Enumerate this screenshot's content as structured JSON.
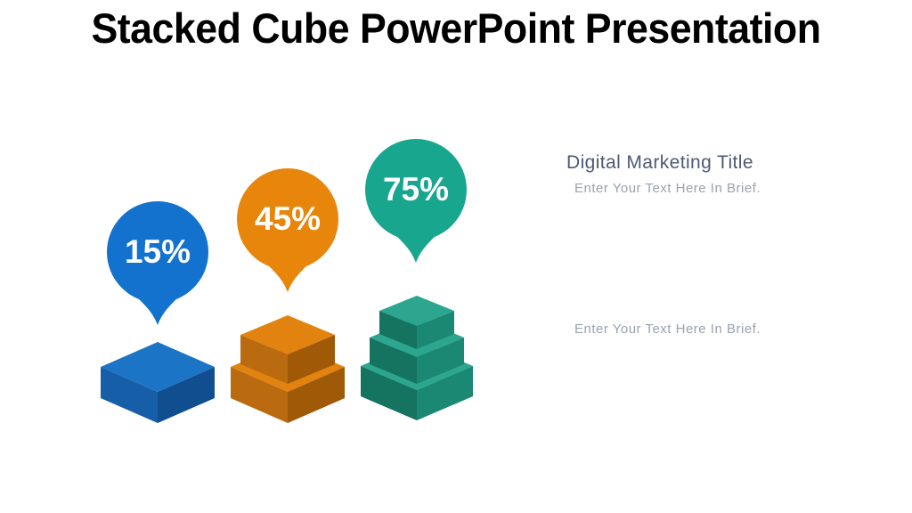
{
  "slide": {
    "title": "Stacked Cube PowerPoint Presentation",
    "background": "#ffffff"
  },
  "items": [
    {
      "id": "blue",
      "percent": "15%",
      "tiers": 1,
      "balloon_color": "#1272CE",
      "faces": {
        "top": "#1B74C6",
        "left": "#175EA9",
        "right": "#114E90"
      }
    },
    {
      "id": "orange",
      "percent": "45%",
      "tiers": 2,
      "balloon_color": "#E8860C",
      "faces": {
        "top": "#E2830F",
        "left": "#BA6A0F",
        "right": "#9F5907"
      }
    },
    {
      "id": "teal",
      "percent": "75%",
      "tiers": 3,
      "balloon_color": "#19A68E",
      "faces": {
        "top": "#2CA68F",
        "left": "#14745F",
        "right": "#1B8874"
      }
    }
  ],
  "right_panel": {
    "title": "Digital Marketing Title",
    "subtitle": "Enter Your Text Here In Brief.",
    "note": "Enter Your Text Here In Brief.",
    "title_color": "#4d5a73",
    "text_color": "#9aa2ac"
  },
  "chart_data": {
    "type": "bar",
    "subtype": "stacked-cube-pictogram",
    "title": "Stacked Cube PowerPoint Presentation",
    "categories": [
      "blue stack",
      "orange stack",
      "teal stack"
    ],
    "values": [
      15,
      45,
      75
    ],
    "value_labels": [
      "15%",
      "45%",
      "75%"
    ],
    "cube_counts": [
      1,
      2,
      3
    ],
    "unit": "%",
    "series_colors": [
      "#1272CE",
      "#E8860C",
      "#19A68E"
    ],
    "legend_position": "none",
    "grid": false
  }
}
